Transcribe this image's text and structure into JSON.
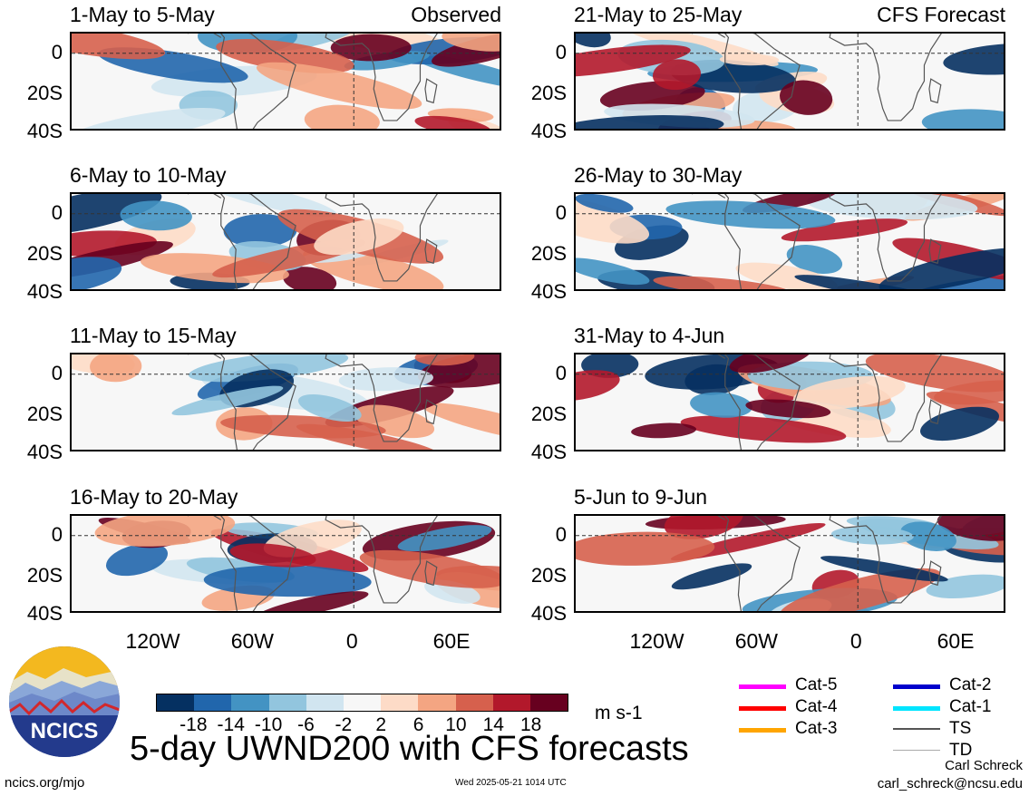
{
  "chart_data": {
    "type": "heatmap",
    "title": "5-day UWND200 with CFS forecasts",
    "units": "m s-1",
    "x_ticks": [
      "120W",
      "60W",
      "0",
      "60E"
    ],
    "y_ticks": [
      "0",
      "20S",
      "40S"
    ],
    "column_tags": [
      "Observed",
      "CFS Forecast"
    ],
    "panels": [
      {
        "period": "1-May to 5-May",
        "source": "Observed"
      },
      {
        "period": "6-May to 10-May",
        "source": "Observed"
      },
      {
        "period": "11-May to 15-May",
        "source": "Observed"
      },
      {
        "period": "16-May to 20-May",
        "source": "Observed"
      },
      {
        "period": "21-May to 25-May",
        "source": "CFS Forecast"
      },
      {
        "period": "26-May to 30-May",
        "source": "CFS Forecast"
      },
      {
        "period": "31-May to 4-Jun",
        "source": "CFS Forecast"
      },
      {
        "period": "5-Jun to 9-Jun",
        "source": "CFS Forecast"
      }
    ],
    "colorbar": {
      "colors": [
        "#053061",
        "#2166ac",
        "#4393c3",
        "#92c5de",
        "#d1e5f0",
        "#f7f7f7",
        "#fddbc7",
        "#f4a582",
        "#d6604d",
        "#b2182b",
        "#67001f"
      ],
      "labels": [
        "-18",
        "-14",
        "-10",
        "-6",
        "-2",
        "2",
        "6",
        "10",
        "14",
        "18"
      ]
    },
    "storm_legend": [
      {
        "label": "Cat-5",
        "color": "#ff00ff"
      },
      {
        "label": "Cat-4",
        "color": "#ff0000"
      },
      {
        "label": "Cat-3",
        "color": "#ffa500"
      },
      {
        "label": "Cat-2",
        "color": "#0000cc"
      },
      {
        "label": "Cat-1",
        "color": "#00e5ff"
      },
      {
        "label": "TS",
        "color": "#555555"
      },
      {
        "label": "TD",
        "color": "#aaaaaa"
      }
    ]
  },
  "footer": {
    "logo_text": "NCICS",
    "site": "ncics.org/mjo",
    "timestamp": "Wed 2025-05-21 1014 UTC",
    "author": "Carl Schreck",
    "email": "carl_schreck@ncsu.edu"
  }
}
